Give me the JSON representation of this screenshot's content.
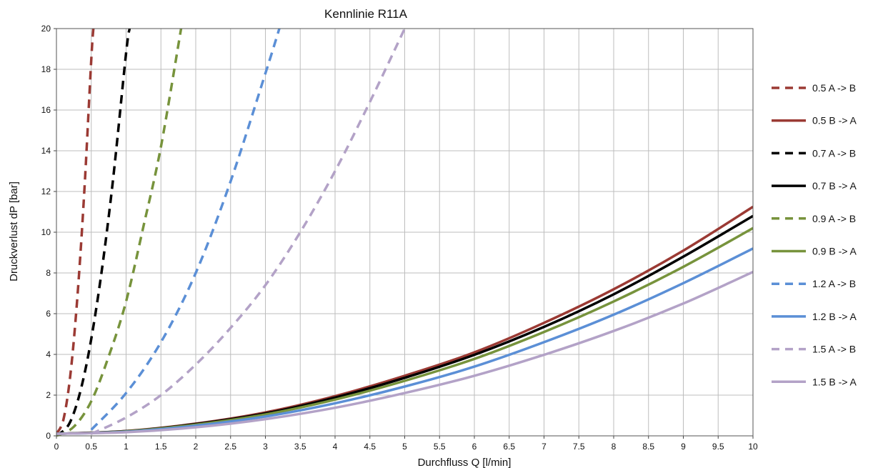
{
  "chart_data": {
    "type": "line",
    "title": "Kennlinie R11A",
    "xlabel": "Durchfluss Q [l/min]",
    "ylabel": "Druckverlust dP [bar]",
    "xlim": [
      0,
      10
    ],
    "ylim": [
      0,
      20
    ],
    "x_ticks": [
      "0",
      "0.5",
      "1",
      "1.5",
      "2",
      "2.5",
      "3",
      "3.5",
      "4",
      "4.5",
      "5",
      "5.5",
      "6",
      "6.5",
      "7",
      "7.5",
      "8",
      "8.5",
      "9",
      "9.5",
      "10"
    ],
    "y_ticks": [
      "0",
      "2",
      "4",
      "6",
      "8",
      "10",
      "12",
      "14",
      "16",
      "18",
      "20"
    ],
    "grid": true,
    "legend_position": "right",
    "series": [
      {
        "name": "0.5  A -> B",
        "color": "#9b3a34",
        "style": "dashed",
        "points": [
          [
            0,
            0.1
          ],
          [
            0.1,
            0.8
          ],
          [
            0.2,
            3
          ],
          [
            0.3,
            6.8
          ],
          [
            0.4,
            12
          ],
          [
            0.5,
            18.5
          ],
          [
            0.53,
            20
          ]
        ]
      },
      {
        "name": "0.5  B -> A",
        "color": "#9b3a34",
        "style": "solid",
        "points": [
          [
            0,
            0.1
          ],
          [
            1,
            0.24
          ],
          [
            2,
            0.6
          ],
          [
            3,
            1.15
          ],
          [
            4,
            1.95
          ],
          [
            5,
            2.95
          ],
          [
            6,
            4.1
          ],
          [
            7,
            5.55
          ],
          [
            8,
            7.2
          ],
          [
            9,
            9.1
          ],
          [
            10,
            11.25
          ]
        ]
      },
      {
        "name": "0.7  A -> B",
        "color": "#000000",
        "style": "dashed",
        "points": [
          [
            0,
            0
          ],
          [
            0.2,
            0.7
          ],
          [
            0.4,
            3
          ],
          [
            0.6,
            6.9
          ],
          [
            0.8,
            12.2
          ],
          [
            1,
            18.8
          ],
          [
            1.05,
            20
          ]
        ]
      },
      {
        "name": "0.7  B -> A",
        "color": "#000000",
        "style": "solid",
        "points": [
          [
            0,
            0.1
          ],
          [
            1,
            0.23
          ],
          [
            2,
            0.58
          ],
          [
            3,
            1.1
          ],
          [
            4,
            1.88
          ],
          [
            5,
            2.85
          ],
          [
            6,
            3.98
          ],
          [
            7,
            5.35
          ],
          [
            8,
            6.95
          ],
          [
            9,
            8.8
          ],
          [
            10,
            10.8
          ]
        ]
      },
      {
        "name": "0.9  A -> B",
        "color": "#77933c",
        "style": "dashed",
        "points": [
          [
            0,
            0
          ],
          [
            0.25,
            0.45
          ],
          [
            0.5,
            1.7
          ],
          [
            0.75,
            3.9
          ],
          [
            1,
            6.6
          ],
          [
            1.25,
            10.3
          ],
          [
            1.5,
            14.2
          ],
          [
            1.79,
            20
          ]
        ]
      },
      {
        "name": "0.9  B -> A",
        "color": "#77933c",
        "style": "solid",
        "points": [
          [
            0,
            0.1
          ],
          [
            1,
            0.22
          ],
          [
            2,
            0.55
          ],
          [
            3,
            1.05
          ],
          [
            4,
            1.78
          ],
          [
            5,
            2.7
          ],
          [
            6,
            3.78
          ],
          [
            7,
            5.1
          ],
          [
            8,
            6.6
          ],
          [
            9,
            8.3
          ],
          [
            10,
            10.2
          ]
        ]
      },
      {
        "name": "1.2  A -> B",
        "color": "#5b8fd6",
        "style": "dashed",
        "points": [
          [
            0.5,
            0.3
          ],
          [
            1,
            2.1
          ],
          [
            1.5,
            4.6
          ],
          [
            2,
            8
          ],
          [
            2.5,
            12.5
          ],
          [
            3,
            17.8
          ],
          [
            3.2,
            20
          ]
        ]
      },
      {
        "name": "1.2  B -> A",
        "color": "#5b8fd6",
        "style": "solid",
        "points": [
          [
            0,
            0.1
          ],
          [
            1,
            0.2
          ],
          [
            2,
            0.5
          ],
          [
            3,
            0.95
          ],
          [
            4,
            1.6
          ],
          [
            5,
            2.42
          ],
          [
            6,
            3.4
          ],
          [
            7,
            4.6
          ],
          [
            8,
            5.95
          ],
          [
            9,
            7.5
          ],
          [
            10,
            9.2
          ]
        ]
      },
      {
        "name": "1.5  A -> B",
        "color": "#b3a2c7",
        "style": "dashed",
        "points": [
          [
            0.5,
            0.1
          ],
          [
            1,
            0.9
          ],
          [
            1.5,
            2
          ],
          [
            2,
            3.5
          ],
          [
            2.5,
            5.3
          ],
          [
            3,
            7.4
          ],
          [
            3.5,
            10
          ],
          [
            4,
            13
          ],
          [
            4.5,
            16.4
          ],
          [
            5,
            20
          ]
        ]
      },
      {
        "name": "1.5  B -> A",
        "color": "#b3a2c7",
        "style": "solid",
        "points": [
          [
            0,
            0.1
          ],
          [
            1,
            0.18
          ],
          [
            2,
            0.42
          ],
          [
            3,
            0.82
          ],
          [
            4,
            1.38
          ],
          [
            5,
            2.1
          ],
          [
            6,
            2.95
          ],
          [
            7,
            3.98
          ],
          [
            8,
            5.15
          ],
          [
            9,
            6.5
          ],
          [
            10,
            8.05
          ]
        ]
      }
    ]
  }
}
